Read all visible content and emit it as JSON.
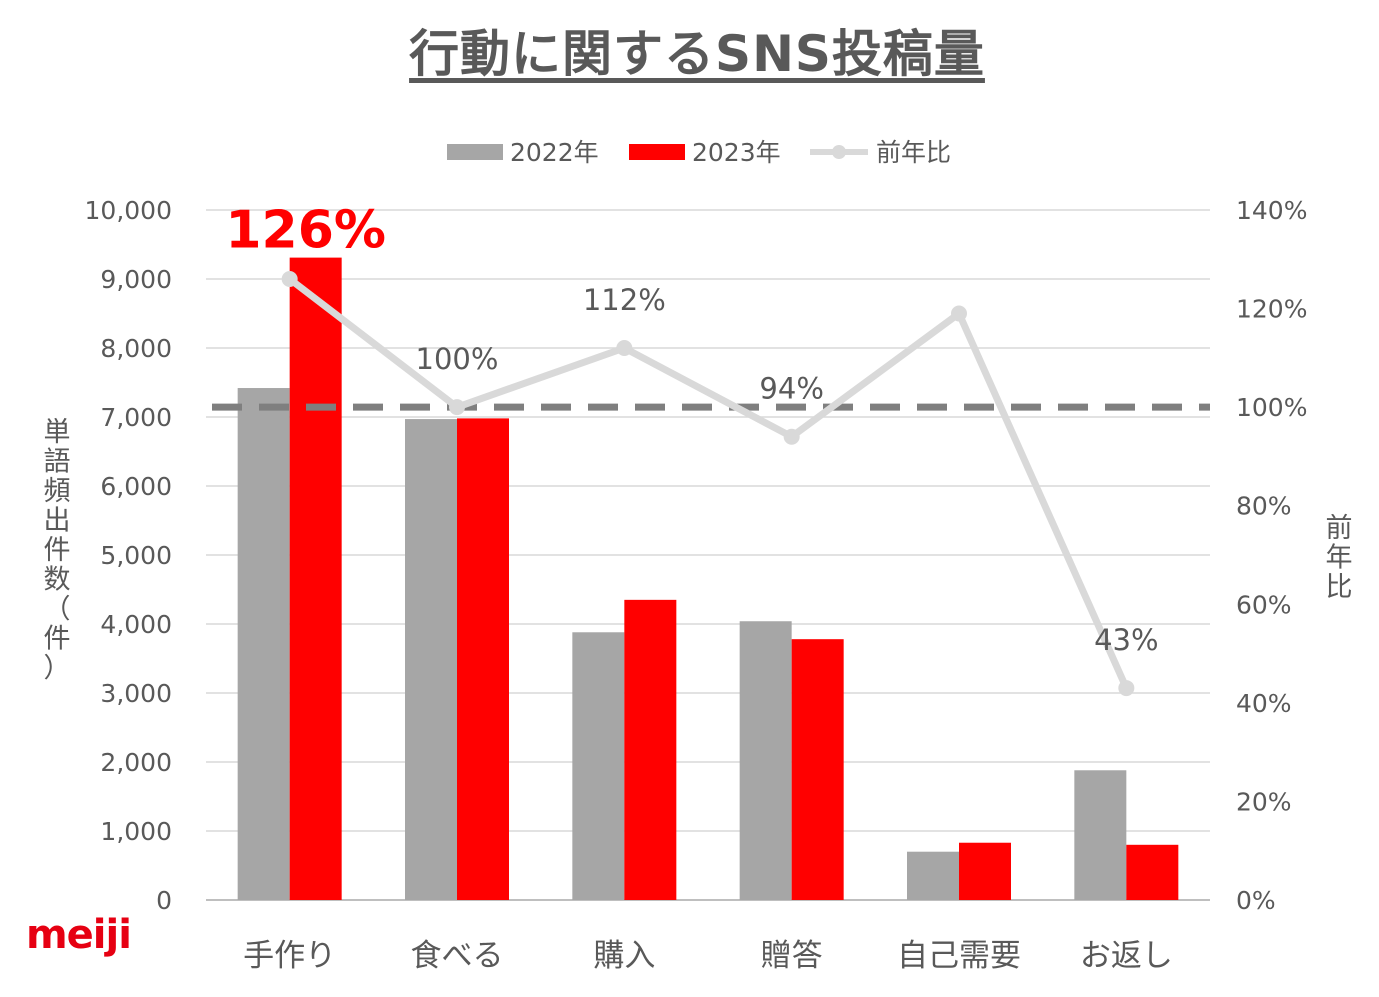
{
  "chart_data": {
    "type": "bar",
    "title": "行動に関するSNS投稿量",
    "categories": [
      "手作り",
      "食べる",
      "購入",
      "贈答",
      "自己需要",
      "お返し"
    ],
    "series": [
      {
        "name": "2022年",
        "type": "bar",
        "color": "#a6a6a6",
        "values": [
          7420,
          6970,
          3880,
          4040,
          700,
          1880
        ]
      },
      {
        "name": "2023年",
        "type": "bar",
        "color": "#ff0000",
        "values": [
          9310,
          6980,
          4350,
          3780,
          830,
          800
        ]
      },
      {
        "name": "前年比",
        "type": "line",
        "axis": "right",
        "color": "#d9d9d9",
        "values": [
          126,
          100,
          112,
          94,
          119,
          43
        ]
      }
    ],
    "data_labels": [
      {
        "category_index": 0,
        "text": "126%",
        "highlight": true
      },
      {
        "category_index": 1,
        "text": "100%"
      },
      {
        "category_index": 2,
        "text": "112%"
      },
      {
        "category_index": 3,
        "text": "94%"
      },
      {
        "category_index": 5,
        "text": "43%"
      }
    ],
    "ylabel": "単語頻出件数（件）",
    "y2label": "前年比",
    "ylim": [
      0,
      10000
    ],
    "y2lim": [
      0,
      140
    ],
    "yticks": [
      "0",
      "1,000",
      "2,000",
      "3,000",
      "4,000",
      "5,000",
      "6,000",
      "7,000",
      "8,000",
      "9,000",
      "10,000"
    ],
    "y2ticks": [
      "0%",
      "20%",
      "40%",
      "60%",
      "80%",
      "100%",
      "120%",
      "140%"
    ],
    "reference_line": {
      "axis": "right",
      "value": 100,
      "style": "dashed",
      "color": "#7f7f7f"
    },
    "grid": true,
    "legend_position": "top"
  },
  "logo": {
    "text": "meiji"
  }
}
